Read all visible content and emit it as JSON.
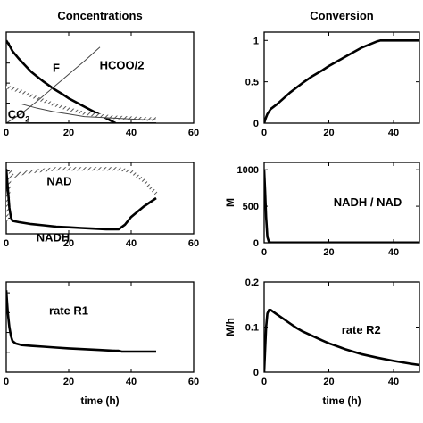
{
  "chart_data": [
    {
      "id": "conc",
      "type": "line",
      "title": "Concentrations",
      "xlabel": "",
      "ylabel": "",
      "xlim": [
        0,
        60
      ],
      "xticks": [
        0,
        20,
        40,
        60
      ],
      "ylim": [
        0,
        1.1
      ],
      "annotations": [
        {
          "text": "F",
          "x": 16,
          "y": 0.62
        },
        {
          "text": "HCOO/2",
          "x": 37,
          "y": 0.65
        },
        {
          "text": "CO2",
          "x": 4,
          "y": 0.06
        }
      ],
      "series": [
        {
          "style": "solid-thick",
          "x": [
            0,
            1,
            2,
            4,
            6,
            8,
            10,
            12,
            15,
            18,
            20,
            25,
            30,
            35
          ],
          "y": [
            1.0,
            0.94,
            0.87,
            0.78,
            0.7,
            0.62,
            0.56,
            0.5,
            0.42,
            0.35,
            0.3,
            0.2,
            0.1,
            0.0
          ]
        },
        {
          "style": "hatched",
          "x": [
            0,
            5,
            10,
            15,
            20,
            25,
            30,
            35,
            40,
            45,
            48
          ],
          "y": [
            0.44,
            0.38,
            0.3,
            0.23,
            0.17,
            0.12,
            0.09,
            0.07,
            0.06,
            0.05,
            0.05
          ]
        },
        {
          "style": "solid-thin",
          "x": [
            0,
            5,
            10,
            15,
            20,
            25,
            30
          ],
          "y": [
            0.0,
            0.12,
            0.27,
            0.43,
            0.59,
            0.75,
            0.92
          ]
        },
        {
          "style": "solid-thin",
          "x": [
            5,
            10,
            15,
            20,
            25,
            30,
            35,
            40,
            45,
            48
          ],
          "y": [
            0.23,
            0.18,
            0.14,
            0.11,
            0.08,
            0.07,
            0.06,
            0.05,
            0.04,
            0.04
          ]
        },
        {
          "style": "solid-medium",
          "x": [
            0,
            10,
            20,
            30,
            40,
            48
          ],
          "y": [
            0.0,
            0.0,
            0.0,
            0.0,
            0.0,
            0.0
          ]
        }
      ]
    },
    {
      "id": "conv",
      "type": "line",
      "title": "Conversion",
      "xlabel": "",
      "ylabel": "",
      "xlim": [
        0,
        48
      ],
      "xticks": [
        0,
        20,
        40
      ],
      "ylim": [
        0,
        1.1
      ],
      "yticks": [
        0,
        0.5,
        1
      ],
      "yticklabels": [
        "0",
        "0.5",
        "1"
      ],
      "series": [
        {
          "style": "solid-thick",
          "x": [
            0,
            0.5,
            1,
            2,
            4,
            6,
            8,
            10,
            12,
            15,
            18,
            20,
            25,
            30,
            35,
            36,
            40,
            44,
            48
          ],
          "y": [
            0,
            0.06,
            0.11,
            0.17,
            0.23,
            0.3,
            0.37,
            0.43,
            0.49,
            0.57,
            0.64,
            0.69,
            0.8,
            0.91,
            0.99,
            1.0,
            1.0,
            1.0,
            1.0
          ]
        }
      ]
    },
    {
      "id": "nad",
      "type": "line",
      "title": "",
      "xlabel": "",
      "ylabel": "",
      "xlim": [
        0,
        60
      ],
      "xticks": [
        0,
        20,
        40,
        60
      ],
      "ylim": [
        0,
        1.1
      ],
      "annotations": [
        {
          "text": "NAD",
          "x": 17,
          "y": 0.75
        },
        {
          "text": "NADH",
          "x": 15,
          "y": -0.12
        }
      ],
      "series": [
        {
          "style": "hatched",
          "x": [
            0,
            0.5,
            1,
            1.5,
            2,
            4,
            8,
            12,
            16,
            20,
            24,
            28,
            32,
            36,
            40,
            44,
            48
          ],
          "y": [
            0.2,
            0.5,
            0.85,
            0.95,
            0.88,
            0.92,
            0.96,
            0.98,
            1.0,
            1.0,
            1.0,
            1.0,
            1.0,
            1.0,
            0.96,
            0.82,
            0.62
          ]
        },
        {
          "style": "solid-thick",
          "x": [
            0,
            0.5,
            1,
            1.5,
            2,
            4,
            8,
            12,
            16,
            20,
            24,
            28,
            32,
            36,
            38,
            40,
            44,
            48
          ],
          "y": [
            1.0,
            0.7,
            0.4,
            0.25,
            0.2,
            0.18,
            0.15,
            0.13,
            0.11,
            0.1,
            0.09,
            0.08,
            0.07,
            0.07,
            0.14,
            0.26,
            0.42,
            0.55
          ]
        }
      ]
    },
    {
      "id": "ratio",
      "type": "line",
      "title": "",
      "xlabel": "",
      "ylabel": "M",
      "xlim": [
        0,
        48
      ],
      "xticks": [
        0,
        20,
        40
      ],
      "ylim": [
        0,
        1100
      ],
      "yticks": [
        0,
        500,
        1000
      ],
      "yticklabels": [
        "0",
        "500",
        "1000"
      ],
      "annotations": [
        {
          "text": "NADH / NAD",
          "x": 32,
          "y": 500
        }
      ],
      "series": [
        {
          "style": "solid-thick",
          "x": [
            0,
            0.3,
            0.6,
            1,
            1.5,
            2,
            5,
            10,
            20,
            30,
            40,
            48
          ],
          "y": [
            1000,
            700,
            350,
            80,
            10,
            3,
            3,
            3,
            3,
            3,
            3,
            3
          ]
        }
      ]
    },
    {
      "id": "r1",
      "type": "line",
      "title": "",
      "xlabel": "time (h)",
      "ylabel": "",
      "xlim": [
        0,
        60
      ],
      "xticks": [
        0,
        20,
        40,
        60
      ],
      "ylim": [
        0,
        1.1
      ],
      "annotations": [
        {
          "text": "rate R1",
          "x": 20,
          "y": 0.7
        }
      ],
      "series": [
        {
          "style": "solid-thick",
          "x": [
            0,
            0.5,
            1,
            1.5,
            2,
            3,
            5,
            8,
            12,
            16,
            20,
            25,
            30,
            35,
            36,
            37,
            40,
            44,
            48
          ],
          "y": [
            1.0,
            0.72,
            0.55,
            0.44,
            0.38,
            0.35,
            0.33,
            0.32,
            0.31,
            0.3,
            0.29,
            0.28,
            0.27,
            0.26,
            0.26,
            0.25,
            0.25,
            0.25,
            0.25
          ]
        }
      ]
    },
    {
      "id": "r2",
      "type": "line",
      "title": "",
      "xlabel": "time (h)",
      "ylabel": "M/h",
      "xlim": [
        0,
        48
      ],
      "xticks": [
        0,
        20,
        40
      ],
      "ylim": [
        0,
        0.2
      ],
      "yticks": [
        0,
        0.1,
        0.2
      ],
      "yticklabels": [
        "0",
        "0.1",
        "0.2"
      ],
      "annotations": [
        {
          "text": "rate R2",
          "x": 30,
          "y": 0.085
        }
      ],
      "series": [
        {
          "style": "solid-thick",
          "x": [
            0,
            0.3,
            0.6,
            1,
            1.5,
            2,
            4,
            6,
            8,
            10,
            12,
            15,
            18,
            20,
            25,
            30,
            35,
            40,
            45,
            48
          ],
          "y": [
            0,
            0.05,
            0.1,
            0.13,
            0.138,
            0.138,
            0.128,
            0.118,
            0.108,
            0.098,
            0.09,
            0.08,
            0.07,
            0.064,
            0.051,
            0.04,
            0.032,
            0.025,
            0.019,
            0.016
          ]
        }
      ]
    }
  ]
}
